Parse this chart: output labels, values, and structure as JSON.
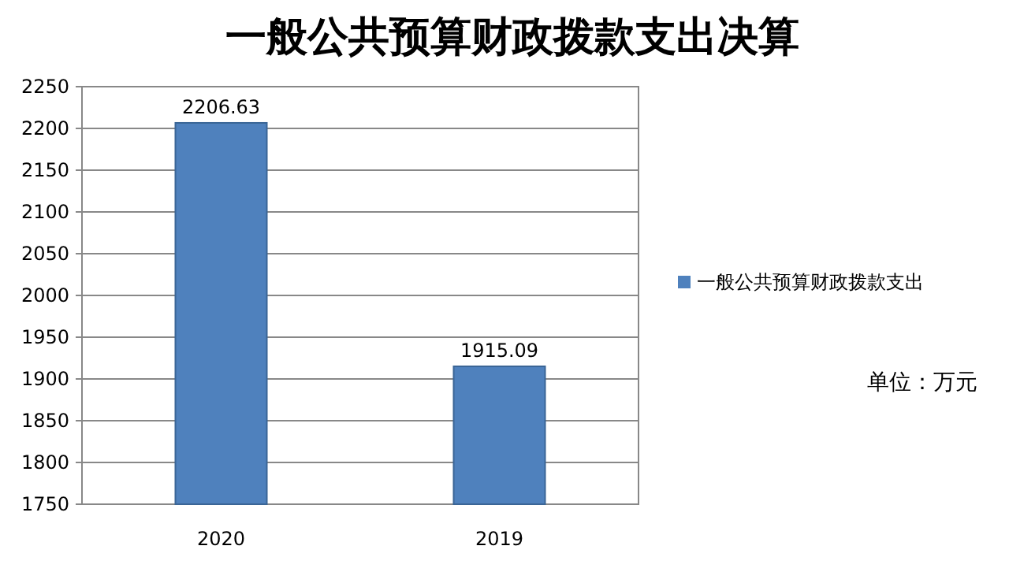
{
  "chart_data": {
    "type": "bar",
    "title": "一般公共预算财政拨款支出决算",
    "categories": [
      "2020",
      "2019"
    ],
    "series": [
      {
        "name": "一般公共预算财政拨款支出",
        "color": "#4f81bd",
        "values": [
          2206.63,
          1915.09
        ]
      }
    ],
    "ylim": [
      1750,
      2250
    ],
    "yticks": [
      1750,
      1800,
      1850,
      1900,
      1950,
      2000,
      2050,
      2100,
      2150,
      2200,
      2250
    ],
    "grid": "y",
    "data_labels": true,
    "legend": "right",
    "annotations": [
      "单位：万元"
    ]
  }
}
